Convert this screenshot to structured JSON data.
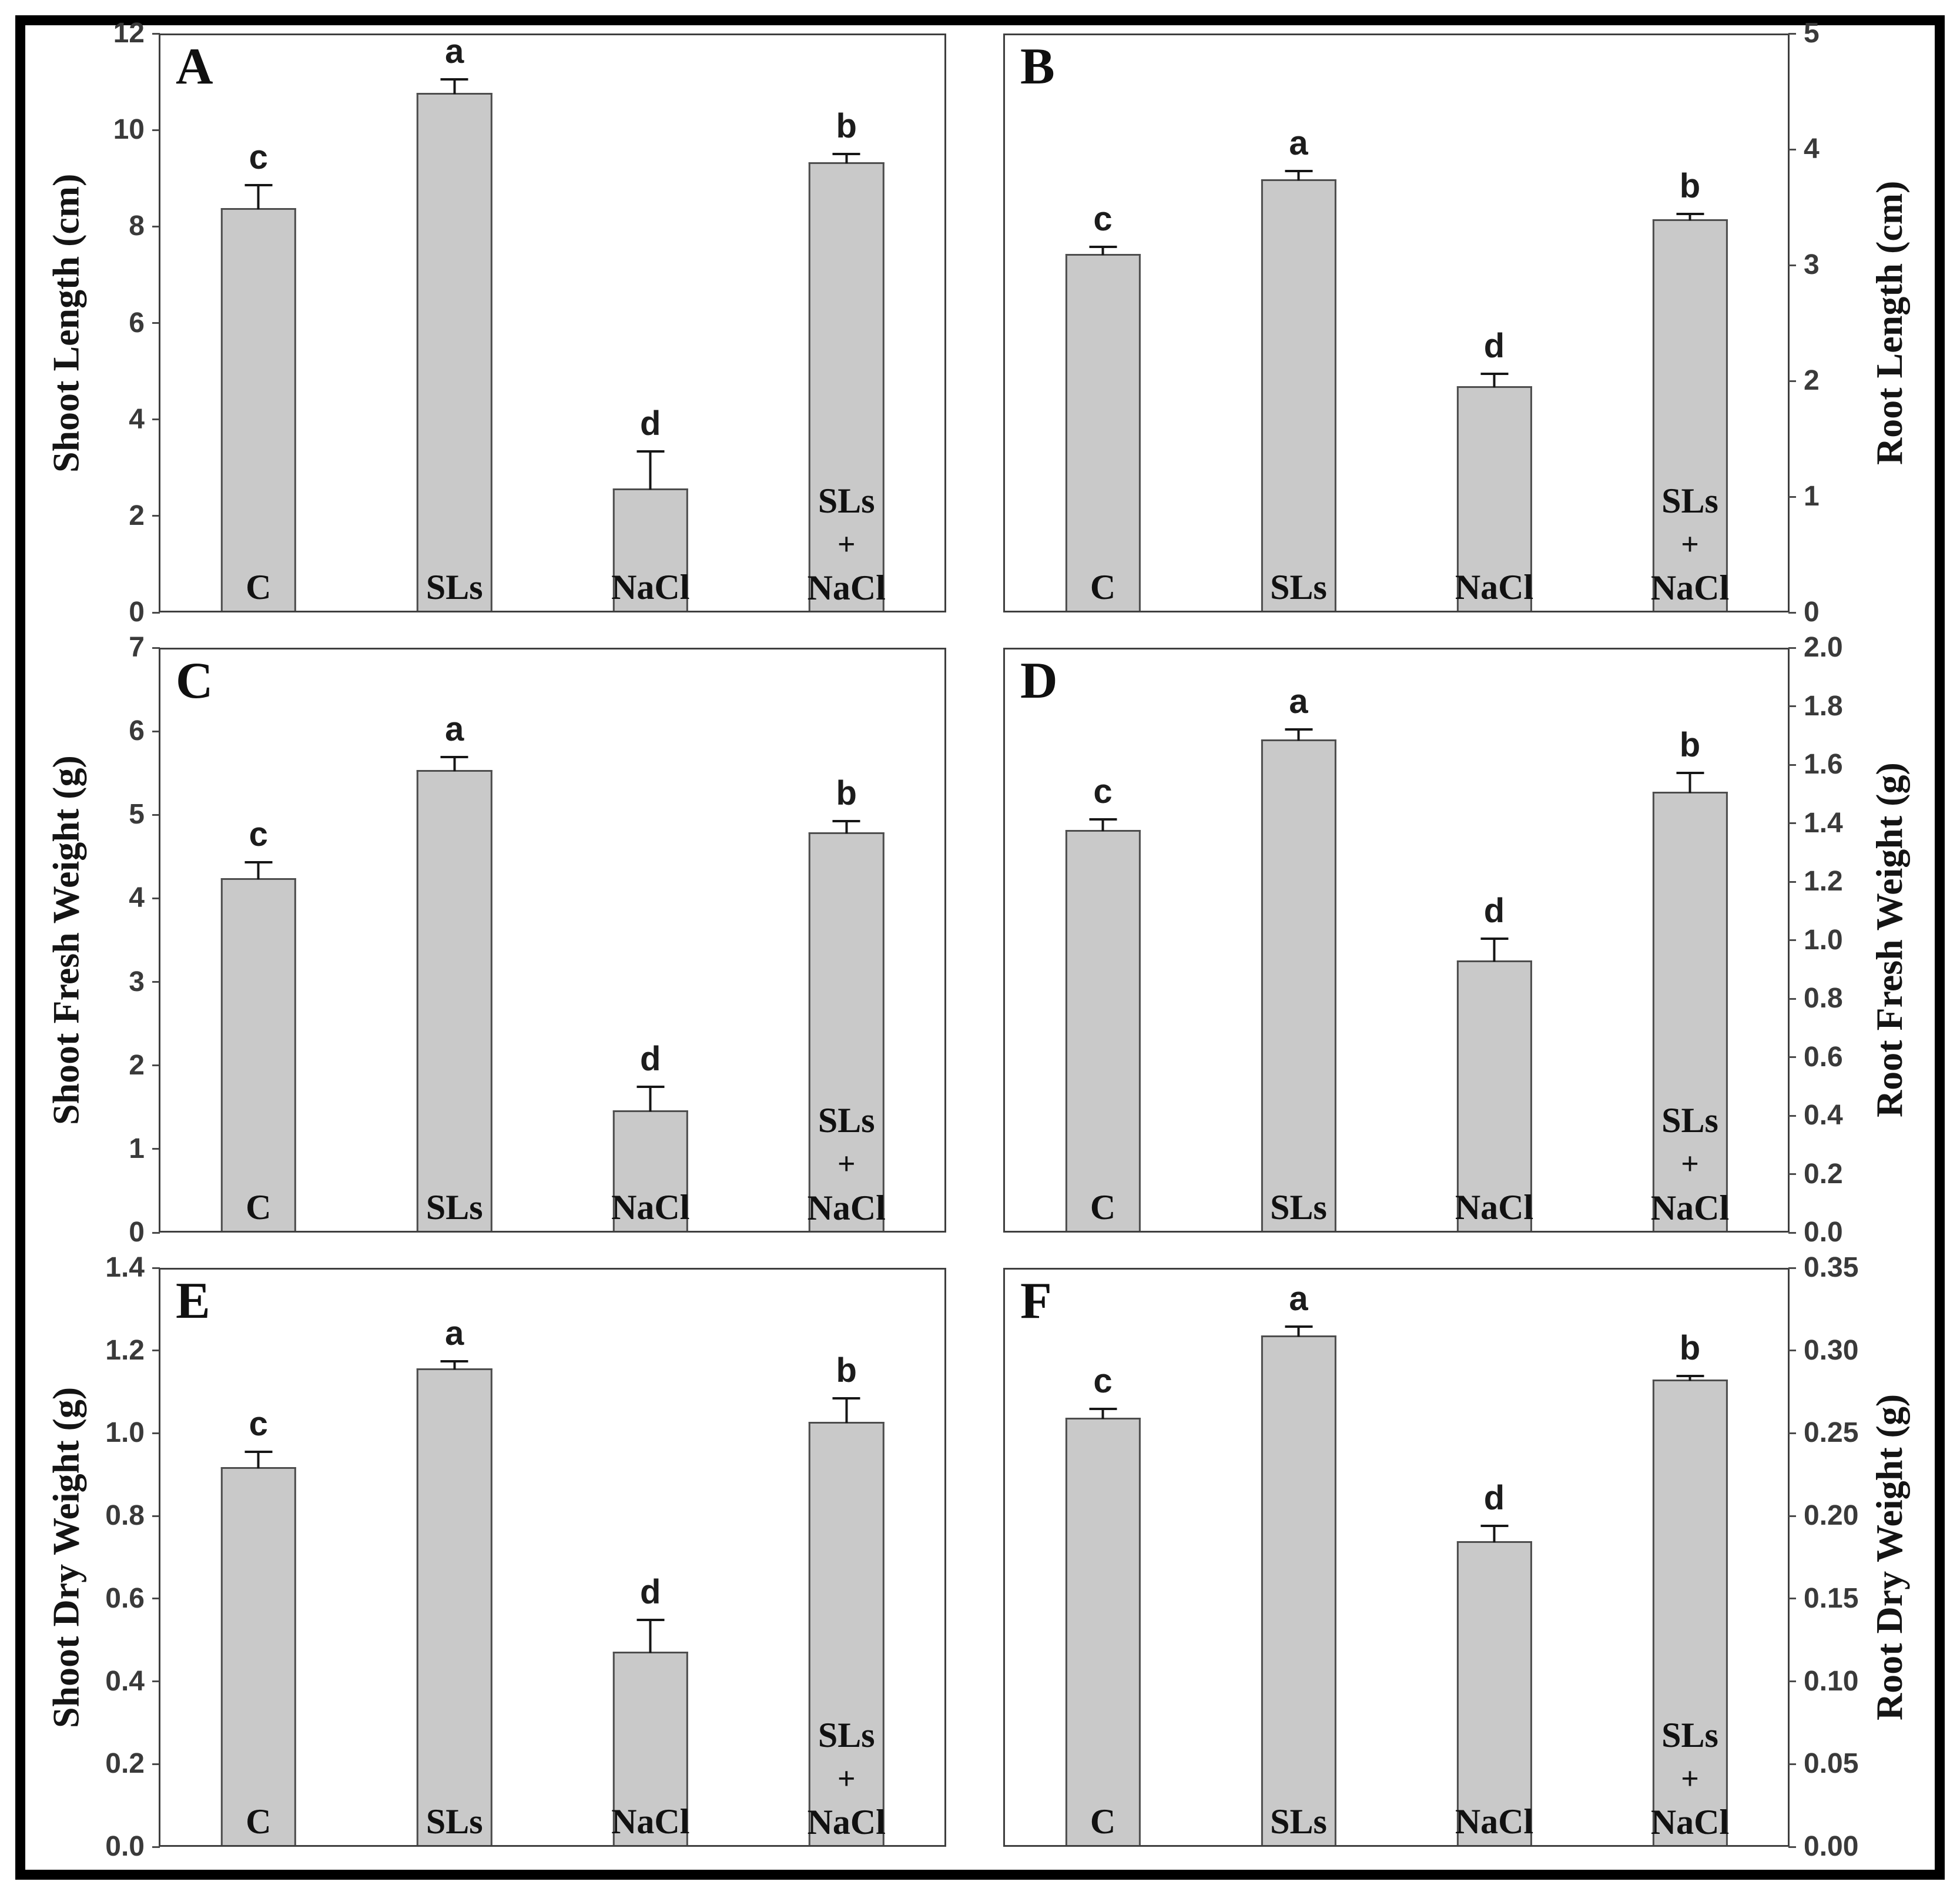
{
  "figure": {
    "background": "#ffffff",
    "frame_color": "#000000",
    "bar_fill": "#c9c9c9",
    "bar_border": "#4d4d4d",
    "error_color": "#161616",
    "tick_color": "#3a3a3a",
    "combo_label_lines": [
      "SLs",
      "+",
      "NaCl"
    ]
  },
  "chart_data": [
    {
      "panel_letter": "A",
      "type": "bar",
      "axis_side": "left",
      "ylabel": "Shoot Length (cm)",
      "ylim": [
        0,
        12
      ],
      "yticks": [
        "0",
        "2",
        "4",
        "6",
        "8",
        "10",
        "12"
      ],
      "categories": [
        "C",
        "SLs",
        "NaCl",
        "SLs + NaCl"
      ],
      "values": [
        8.4,
        10.8,
        2.55,
        9.35
      ],
      "errors": [
        0.5,
        0.3,
        0.8,
        0.2
      ],
      "sig_letters": [
        "c",
        "a",
        "d",
        "b"
      ]
    },
    {
      "panel_letter": "B",
      "type": "bar",
      "axis_side": "right",
      "ylabel": "Root Length (cm)",
      "ylim": [
        0,
        5
      ],
      "yticks": [
        "0",
        "1",
        "2",
        "3",
        "4",
        "5"
      ],
      "categories": [
        "C",
        "SLs",
        "NaCl",
        "SLs + NaCl"
      ],
      "values": [
        3.1,
        3.75,
        1.95,
        3.4
      ],
      "errors": [
        0.07,
        0.08,
        0.12,
        0.06
      ],
      "sig_letters": [
        "c",
        "a",
        "d",
        "b"
      ]
    },
    {
      "panel_letter": "C",
      "type": "bar",
      "axis_side": "left",
      "ylabel": "Shoot Fresh Weight (g)",
      "ylim": [
        0,
        7
      ],
      "yticks": [
        "0",
        "1",
        "2",
        "3",
        "4",
        "5",
        "6",
        "7"
      ],
      "categories": [
        "C",
        "SLs",
        "NaCl",
        "SLs + NaCl"
      ],
      "values": [
        4.25,
        5.55,
        1.45,
        4.8
      ],
      "errors": [
        0.2,
        0.17,
        0.3,
        0.15
      ],
      "sig_letters": [
        "c",
        "a",
        "d",
        "b"
      ]
    },
    {
      "panel_letter": "D",
      "type": "bar",
      "axis_side": "right",
      "ylabel": "Root Fresh Weight (g)",
      "ylim": [
        0,
        2.0
      ],
      "yticks": [
        "0.0",
        "0.2",
        "0.4",
        "0.6",
        "0.8",
        "1.0",
        "1.2",
        "1.4",
        "1.6",
        "1.8",
        "2.0"
      ],
      "categories": [
        "C",
        "SLs",
        "NaCl",
        "SLs + NaCl"
      ],
      "values": [
        1.38,
        1.69,
        0.93,
        1.51
      ],
      "errors": [
        0.04,
        0.04,
        0.08,
        0.07
      ],
      "sig_letters": [
        "c",
        "a",
        "d",
        "b"
      ]
    },
    {
      "panel_letter": "E",
      "type": "bar",
      "axis_side": "left",
      "ylabel": "Shoot Dry Weight (g)",
      "ylim": [
        0,
        1.4
      ],
      "yticks": [
        "0.0",
        "0.2",
        "0.4",
        "0.6",
        "0.8",
        "1.0",
        "1.2",
        "1.4"
      ],
      "categories": [
        "C",
        "SLs",
        "NaCl",
        "SLs + NaCl"
      ],
      "values": [
        0.92,
        1.16,
        0.47,
        1.03
      ],
      "errors": [
        0.04,
        0.02,
        0.08,
        0.06
      ],
      "sig_letters": [
        "c",
        "a",
        "d",
        "b"
      ]
    },
    {
      "panel_letter": "F",
      "type": "bar",
      "axis_side": "right",
      "ylabel": "Root Dry Weight (g)",
      "ylim": [
        0,
        0.35
      ],
      "yticks": [
        "0.00",
        "0.05",
        "0.10",
        "0.15",
        "0.20",
        "0.25",
        "0.30",
        "0.35"
      ],
      "categories": [
        "C",
        "SLs",
        "NaCl",
        "SLs + NaCl"
      ],
      "values": [
        0.26,
        0.31,
        0.185,
        0.283
      ],
      "errors": [
        0.006,
        0.006,
        0.01,
        0.003
      ],
      "sig_letters": [
        "c",
        "a",
        "d",
        "b"
      ]
    }
  ]
}
